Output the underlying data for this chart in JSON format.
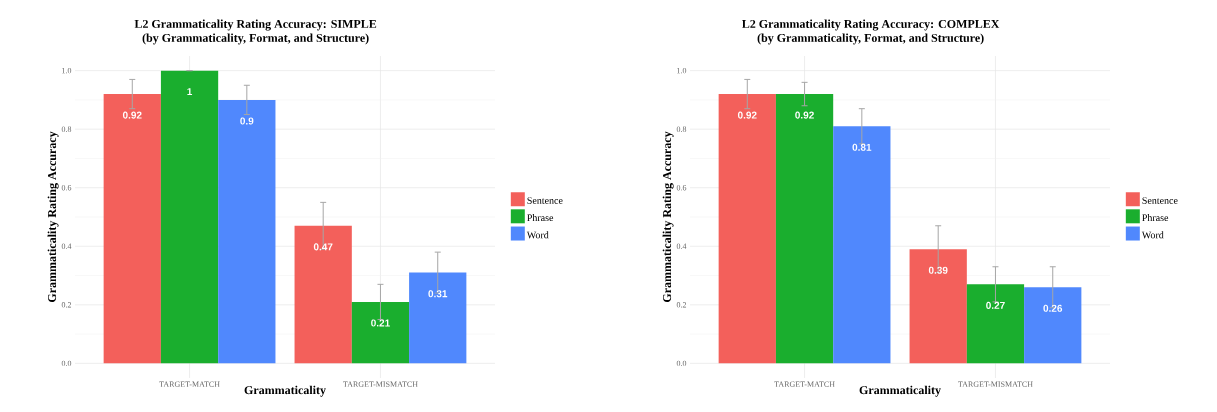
{
  "chart_data": [
    {
      "type": "bar",
      "title": "L2 Grammaticality Rating Accuracy: SIMPLE",
      "subtitle": "(by Grammaticality, Format, and Structure)",
      "xlabel": "Grammaticality",
      "ylabel": "Grammaticality Rating Accuracy",
      "categories": [
        "TARGET-MATCH",
        "TARGET-MISMATCH"
      ],
      "series": [
        {
          "name": "Sentence",
          "color": "#f3605b",
          "values": [
            0.92,
            0.47
          ],
          "errors": [
            [
              0.87,
              0.97
            ],
            [
              0.39,
              0.55
            ]
          ]
        },
        {
          "name": "Phrase",
          "color": "#1aae2e",
          "values": [
            1,
            0.21
          ],
          "errors": [
            [
              1,
              1
            ],
            [
              0.15,
              0.27
            ]
          ]
        },
        {
          "name": "Word",
          "color": "#5088fd",
          "values": [
            0.9,
            0.31
          ],
          "errors": [
            [
              0.85,
              0.95
            ],
            [
              0.24,
              0.38
            ]
          ]
        }
      ],
      "ylim": [
        -0.05,
        1.05
      ],
      "yticks": [
        {
          "value": 0,
          "label": "0.0"
        },
        {
          "value": 0.2,
          "label": "0.2"
        },
        {
          "value": 0.4,
          "label": "0.4"
        },
        {
          "value": 0.6,
          "label": "0.6"
        },
        {
          "value": 0.8,
          "label": "0.8"
        },
        {
          "value": 1,
          "label": "1.0"
        }
      ],
      "grid": true,
      "legend": "right",
      "data_labels": true
    },
    {
      "type": "bar",
      "title": "L2 Grammaticality Rating Accuracy: COMPLEX",
      "subtitle": "(by Grammaticality, Format, and Structure)",
      "xlabel": "Grammaticality",
      "ylabel": "Grammaticality Rating Accuracy",
      "categories": [
        "TARGET-MATCH",
        "TARGET-MISMATCH"
      ],
      "series": [
        {
          "name": "Sentence",
          "color": "#f3605b",
          "values": [
            0.92,
            0.39
          ],
          "errors": [
            [
              0.87,
              0.97
            ],
            [
              0.31,
              0.47
            ]
          ]
        },
        {
          "name": "Phrase",
          "color": "#1aae2e",
          "values": [
            0.92,
            0.27
          ],
          "errors": [
            [
              0.88,
              0.96
            ],
            [
              0.21,
              0.33
            ]
          ]
        },
        {
          "name": "Word",
          "color": "#5088fd",
          "values": [
            0.81,
            0.26
          ],
          "errors": [
            [
              0.75,
              0.87
            ],
            [
              0.19,
              0.33
            ]
          ]
        }
      ],
      "ylim": [
        -0.05,
        1.05
      ],
      "yticks": [
        {
          "value": 0,
          "label": "0.0"
        },
        {
          "value": 0.2,
          "label": "0.2"
        },
        {
          "value": 0.4,
          "label": "0.4"
        },
        {
          "value": 0.6,
          "label": "0.6"
        },
        {
          "value": 0.8,
          "label": "0.8"
        },
        {
          "value": 1,
          "label": "1.0"
        }
      ],
      "grid": true,
      "legend": "right",
      "data_labels": true
    }
  ]
}
